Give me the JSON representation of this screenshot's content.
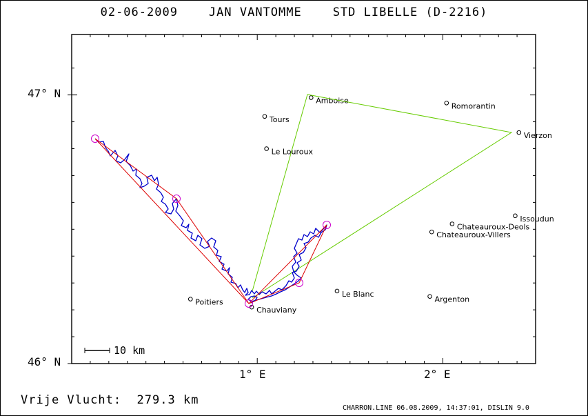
{
  "header": {
    "date": "02-06-2009",
    "pilot": "JAN VANTOMME",
    "glider": "STD LIBELLE (D-2216)"
  },
  "axes": {
    "lat_labels": [
      "47° N",
      "46° N"
    ],
    "lon_labels": [
      "1° E",
      "2° E"
    ]
  },
  "scale_bar": {
    "label": "10 km"
  },
  "distance": {
    "label": "Vrije Vlucht:",
    "value": "279.3 km"
  },
  "footer": {
    "text": "CHARRON.LINE 06.08.2009, 14:37:01, DISLIN 9.0"
  },
  "places": [
    {
      "name": "Amboise",
      "lon": 1.29,
      "lat": 46.99
    },
    {
      "name": "Romorantin",
      "lon": 2.02,
      "lat": 46.97
    },
    {
      "name": "Tours",
      "lon": 1.04,
      "lat": 46.92
    },
    {
      "name": "Vierzon",
      "lon": 2.41,
      "lat": 46.86
    },
    {
      "name": "Le Louroux",
      "lon": 1.05,
      "lat": 46.8
    },
    {
      "name": "Issoudun",
      "lon": 2.39,
      "lat": 46.55
    },
    {
      "name": "Chateauroux-Deols",
      "lon": 2.05,
      "lat": 46.52
    },
    {
      "name": "Chateauroux-Villers",
      "lon": 1.94,
      "lat": 46.49
    },
    {
      "name": "Le Blanc",
      "lon": 1.43,
      "lat": 46.27
    },
    {
      "name": "Poitiers",
      "lon": 0.64,
      "lat": 46.24
    },
    {
      "name": "Argenton",
      "lon": 1.93,
      "lat": 46.25
    },
    {
      "name": "Chauviany",
      "lon": 0.97,
      "lat": 46.21
    }
  ],
  "colors": {
    "track": "#0000cc",
    "declared_task": "#66cc00",
    "optimized": "#dd0000",
    "turnpoint_circle": "#cc00cc"
  }
}
